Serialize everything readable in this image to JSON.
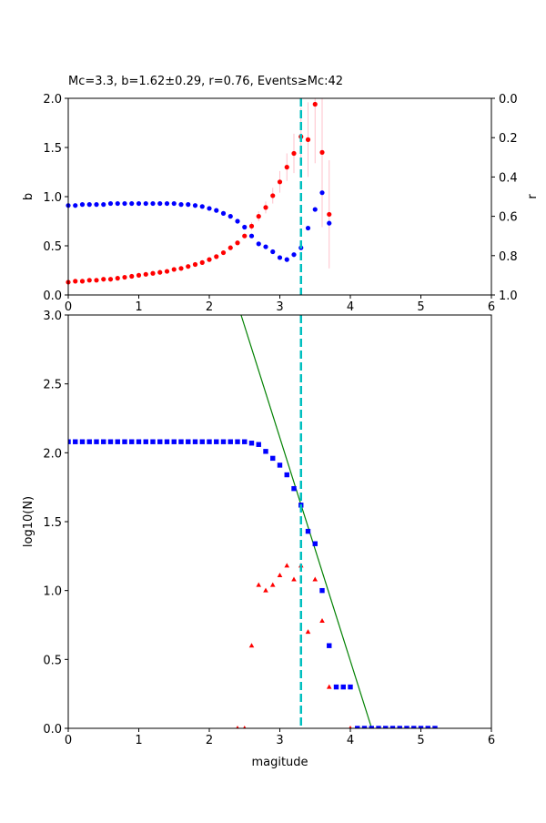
{
  "chart_data": [
    {
      "type": "scatter",
      "title": "Mc=3.3, b=1.62±0.29, r=0.76, Events≥Mc:42",
      "xlabel": "",
      "ylabel": "b",
      "ylabel_right": "r",
      "xlim": [
        0,
        6
      ],
      "ylim": [
        0,
        2
      ],
      "ylim_right": [
        1,
        0
      ],
      "xticks": [
        "0",
        "1",
        "2",
        "3",
        "4",
        "5",
        "6"
      ],
      "yticks": [
        "0.0",
        "0.5",
        "1.0",
        "1.5",
        "2.0"
      ],
      "yticks_right": [
        "0.0",
        "0.2",
        "0.4",
        "0.6",
        "0.8",
        "1.0"
      ],
      "mc_line": 3.3,
      "colors": {
        "b": "#ff0000",
        "r": "#0000ff",
        "err": "#ffc0cb",
        "mc": "#00bfbf"
      },
      "x": [
        0,
        0.1,
        0.2,
        0.3,
        0.4,
        0.5,
        0.6,
        0.7,
        0.8,
        0.9,
        1.0,
        1.1,
        1.2,
        1.3,
        1.4,
        1.5,
        1.6,
        1.7,
        1.8,
        1.9,
        2.0,
        2.1,
        2.2,
        2.3,
        2.4,
        2.5,
        2.6,
        2.7,
        2.8,
        2.9,
        3.0,
        3.1,
        3.2,
        3.3,
        3.4,
        3.5,
        3.6,
        3.7
      ],
      "series": [
        {
          "name": "b",
          "axis": "left",
          "values": [
            0.13,
            0.14,
            0.14,
            0.15,
            0.15,
            0.16,
            0.16,
            0.17,
            0.18,
            0.19,
            0.2,
            0.21,
            0.22,
            0.23,
            0.24,
            0.26,
            0.27,
            0.29,
            0.31,
            0.33,
            0.36,
            0.39,
            0.43,
            0.48,
            0.53,
            0.6,
            0.7,
            0.8,
            0.89,
            1.01,
            1.15,
            1.3,
            1.44,
            1.61,
            1.58,
            1.94,
            1.45,
            0.82
          ],
          "errors": [
            0,
            0,
            0,
            0,
            0,
            0,
            0,
            0,
            0,
            0,
            0,
            0,
            0,
            0,
            0,
            0,
            0,
            0,
            0,
            0.01,
            0.01,
            0.01,
            0.01,
            0.01,
            0.02,
            0.02,
            0.04,
            0.05,
            0.06,
            0.08,
            0.11,
            0.14,
            0.2,
            0.29,
            0.38,
            0.6,
            0.76,
            0.55
          ]
        },
        {
          "name": "r",
          "axis": "right",
          "values": [
            0.545,
            0.545,
            0.54,
            0.54,
            0.54,
            0.54,
            0.535,
            0.535,
            0.535,
            0.535,
            0.535,
            0.535,
            0.535,
            0.535,
            0.535,
            0.535,
            0.54,
            0.54,
            0.545,
            0.55,
            0.56,
            0.57,
            0.585,
            0.6,
            0.625,
            0.655,
            0.7,
            0.74,
            0.755,
            0.78,
            0.81,
            0.82,
            0.795,
            0.76,
            0.66,
            0.565,
            0.48,
            0.635
          ]
        }
      ]
    },
    {
      "type": "scatter",
      "title": "",
      "xlabel": "magitude",
      "ylabel": "log10(N)",
      "xlim": [
        0,
        6
      ],
      "ylim": [
        0,
        3
      ],
      "xticks": [
        "0",
        "1",
        "2",
        "3",
        "4",
        "5",
        "6"
      ],
      "yticks": [
        "0.0",
        "0.5",
        "1.0",
        "1.5",
        "2.0",
        "2.5",
        "3.0"
      ],
      "mc_line": 3.3,
      "fit_line": {
        "a": 6.97,
        "b": 1.62,
        "color": "#008000"
      },
      "colors": {
        "cumulative": "#0000ff",
        "noncumulative": "#ff0000",
        "mc": "#00bfbf"
      },
      "series": [
        {
          "name": "cumulative",
          "marker": "square",
          "x": [
            0,
            0.1,
            0.2,
            0.3,
            0.4,
            0.5,
            0.6,
            0.7,
            0.8,
            0.9,
            1.0,
            1.1,
            1.2,
            1.3,
            1.4,
            1.5,
            1.6,
            1.7,
            1.8,
            1.9,
            2.0,
            2.1,
            2.2,
            2.3,
            2.4,
            2.5,
            2.6,
            2.7,
            2.8,
            2.9,
            3.0,
            3.1,
            3.2,
            3.3,
            3.4,
            3.5,
            3.6,
            3.7,
            3.8,
            3.9,
            4.0,
            4.1,
            4.2,
            4.3,
            4.4,
            4.5,
            4.6,
            4.7,
            4.8,
            4.9,
            5.0,
            5.1,
            5.2
          ],
          "values": [
            2.08,
            2.08,
            2.08,
            2.08,
            2.08,
            2.08,
            2.08,
            2.08,
            2.08,
            2.08,
            2.08,
            2.08,
            2.08,
            2.08,
            2.08,
            2.08,
            2.08,
            2.08,
            2.08,
            2.08,
            2.08,
            2.08,
            2.08,
            2.08,
            2.08,
            2.08,
            2.07,
            2.06,
            2.01,
            1.96,
            1.91,
            1.84,
            1.74,
            1.62,
            1.43,
            1.34,
            1.0,
            0.6,
            0.3,
            0.3,
            0.3,
            0,
            0,
            0,
            0,
            0,
            0,
            0,
            0,
            0,
            0,
            0,
            0
          ]
        },
        {
          "name": "noncumulative",
          "marker": "triangle",
          "x": [
            2.4,
            2.5,
            2.6,
            2.7,
            2.8,
            2.9,
            3.0,
            3.1,
            3.2,
            3.3,
            3.4,
            3.5,
            3.6,
            3.7,
            4.0
          ],
          "values": [
            0,
            0,
            0.6,
            1.04,
            1.0,
            1.04,
            1.11,
            1.18,
            1.08,
            1.18,
            0.7,
            1.08,
            0.78,
            0.3,
            0
          ]
        }
      ]
    }
  ]
}
